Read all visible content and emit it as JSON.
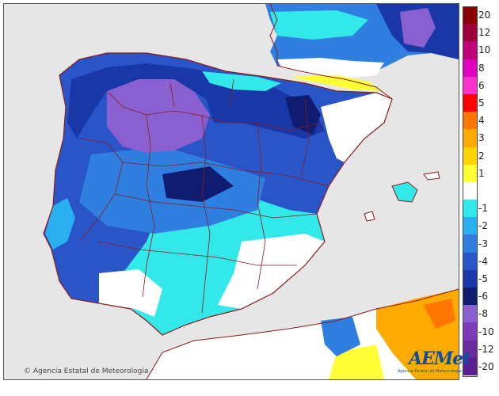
{
  "legend": {
    "items": [
      {
        "label": "20",
        "color": "#8b0000"
      },
      {
        "label": "12",
        "color": "#a0003a"
      },
      {
        "label": "10",
        "color": "#c0007a"
      },
      {
        "label": "8",
        "color": "#e000c0"
      },
      {
        "label": "6",
        "color": "#ff33cc"
      },
      {
        "label": "5",
        "color": "#ff0000"
      },
      {
        "label": "4",
        "color": "#ff7700"
      },
      {
        "label": "3",
        "color": "#ffaa00"
      },
      {
        "label": "2",
        "color": "#ffd400"
      },
      {
        "label": "1",
        "color": "#ffff33"
      },
      {
        "label": "",
        "color": "#ffffff"
      },
      {
        "label": "-1",
        "color": "#33e8e8"
      },
      {
        "label": "-2",
        "color": "#2ab0f0"
      },
      {
        "label": "-3",
        "color": "#2f7fe0"
      },
      {
        "label": "-4",
        "color": "#2a55c8"
      },
      {
        "label": "-5",
        "color": "#1a37a8"
      },
      {
        "label": "-6",
        "color": "#101c70"
      },
      {
        "label": "-8",
        "color": "#8a60d0"
      },
      {
        "label": "-10",
        "color": "#7a3cb8"
      },
      {
        "label": "-12",
        "color": "#6a2aa0"
      },
      {
        "label": "-20",
        "color": "#5a1f90"
      }
    ]
  },
  "copyright": "© Agencia Estatal de Meteorología",
  "logo": {
    "name": "AEMet",
    "subtitle": "Agencia Estatal de Meteorología"
  },
  "colors": {
    "sea": "#e6e6e6",
    "border": "#8b1a1a"
  }
}
